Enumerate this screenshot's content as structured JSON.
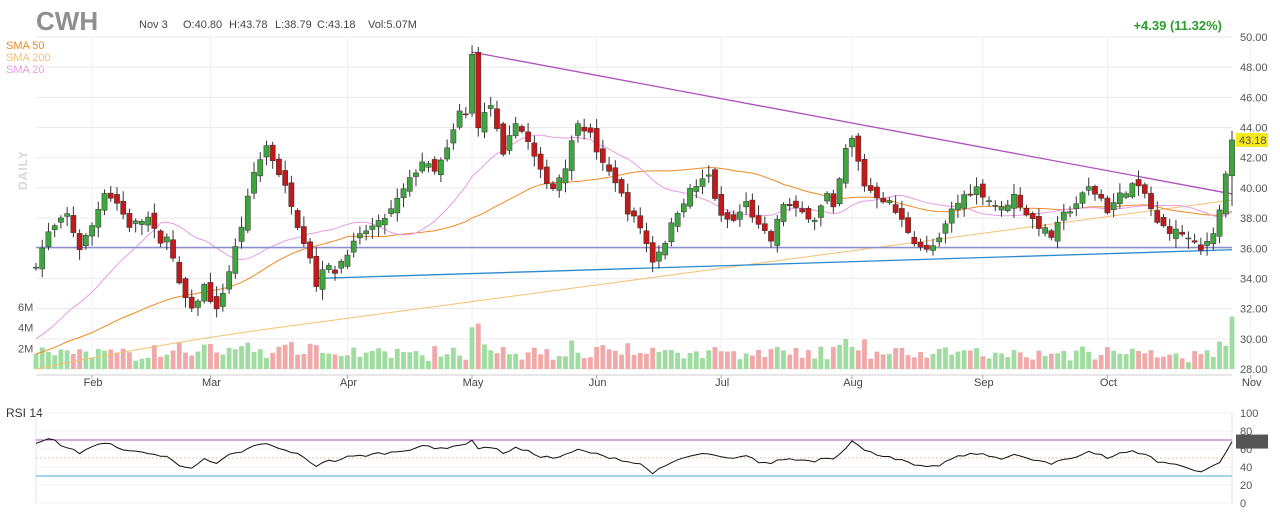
{
  "header": {
    "ticker": "CWH",
    "date": "Nov 3",
    "open": "O:40.80",
    "high": "H:43.78",
    "low": "L:38.79",
    "close": "C:43.18",
    "volume": "Vol:5.07M",
    "change": "+4.39 (11.32%)",
    "timeframe": "DAILY"
  },
  "legend": [
    {
      "label": "SMA 50",
      "color": "#f08a24"
    },
    {
      "label": "SMA 200",
      "color": "#f4c272"
    },
    {
      "label": "SMA 20",
      "color": "#e79be6"
    }
  ],
  "colors": {
    "up": "#3fa63f",
    "down": "#c21a1a",
    "vol_up": "#9fdc9f",
    "vol_down": "#f0a8a8",
    "trend_down": "#b04ec0",
    "trend_up": "#2a8ad0",
    "support": "#8b8fd0",
    "rsi_line": "#111111",
    "rsi_fill": "#a64fc6",
    "rsi_70": "#b04ec0",
    "rsi_30": "#4aa8d8",
    "price_badge": "#f5e91d",
    "rsi_badge": "#555555"
  },
  "chart_data": {
    "type": "candlestick",
    "price_axis": {
      "min": 28,
      "max": 50,
      "ticks": [
        "28.00",
        "30.00",
        "32.00",
        "34.00",
        "36.00",
        "38.00",
        "40.00",
        "42.00",
        "44.00",
        "46.00",
        "48.00",
        "50.00"
      ]
    },
    "volume_axis": {
      "ticks": [
        "2M",
        "4M",
        "6M"
      ],
      "max": 6
    },
    "months": [
      {
        "label": "Feb",
        "index": 9
      },
      {
        "label": "Mar",
        "index": 28
      },
      {
        "label": "Apr",
        "index": 50
      },
      {
        "label": "May",
        "index": 70
      },
      {
        "label": "Jun",
        "index": 90
      },
      {
        "label": "Jul",
        "index": 110
      },
      {
        "label": "Aug",
        "index": 131
      },
      {
        "label": "Sep",
        "index": 152
      },
      {
        "label": "Oct",
        "index": 172
      },
      {
        "label": "Nov",
        "index": 195
      }
    ],
    "last_price": "43.18",
    "anchors": [
      [
        0,
        35
      ],
      [
        2,
        37
      ],
      [
        5,
        38.2
      ],
      [
        7,
        36
      ],
      [
        9,
        37.5
      ],
      [
        11,
        39.8
      ],
      [
        13,
        39
      ],
      [
        15,
        37.5
      ],
      [
        18,
        38
      ],
      [
        20,
        36.2
      ],
      [
        21,
        37
      ],
      [
        23,
        33.5
      ],
      [
        25,
        31.8
      ],
      [
        27,
        33.5
      ],
      [
        29,
        31.8
      ],
      [
        31,
        34.5
      ],
      [
        33,
        37.5
      ],
      [
        35,
        41
      ],
      [
        37,
        42.8
      ],
      [
        39,
        41
      ],
      [
        41,
        39
      ],
      [
        42,
        37.6
      ],
      [
        44,
        35.5
      ],
      [
        45,
        33.5
      ],
      [
        46,
        34.8
      ],
      [
        48,
        34.5
      ],
      [
        50,
        35.8
      ],
      [
        53,
        37.2
      ],
      [
        55,
        37.6
      ],
      [
        57,
        38.5
      ],
      [
        60,
        40.5
      ],
      [
        62,
        41.8
      ],
      [
        64,
        41
      ],
      [
        66,
        42.5
      ],
      [
        68,
        45
      ],
      [
        69,
        44.8
      ],
      [
        70,
        48.8
      ],
      [
        71,
        44.2
      ],
      [
        73,
        45.5
      ],
      [
        75,
        42
      ],
      [
        77,
        44.5
      ],
      [
        79,
        43
      ],
      [
        81,
        41
      ],
      [
        83,
        40
      ],
      [
        85,
        41.5
      ],
      [
        87,
        44.5
      ],
      [
        89,
        43.5
      ],
      [
        91,
        41.5
      ],
      [
        93,
        40.5
      ],
      [
        95,
        38.5
      ],
      [
        97,
        37.4
      ],
      [
        99,
        35.2
      ],
      [
        101,
        36.5
      ],
      [
        103,
        38.5
      ],
      [
        105,
        39.8
      ],
      [
        108,
        40.8
      ],
      [
        110,
        38
      ],
      [
        112,
        37.8
      ],
      [
        114,
        39
      ],
      [
        116,
        37.4
      ],
      [
        118,
        36.5
      ],
      [
        120,
        39
      ],
      [
        122,
        38.5
      ],
      [
        125,
        38
      ],
      [
        127,
        39.5
      ],
      [
        128,
        38.5
      ],
      [
        130,
        42.5
      ],
      [
        131,
        43.2
      ],
      [
        133,
        40.2
      ],
      [
        135,
        39.5
      ],
      [
        137,
        39
      ],
      [
        139,
        37.8
      ],
      [
        141,
        36.5
      ],
      [
        143,
        35.8
      ],
      [
        145,
        36.5
      ],
      [
        147,
        38.5
      ],
      [
        149,
        39.5
      ],
      [
        151,
        40
      ],
      [
        153,
        39.2
      ],
      [
        155,
        38.6
      ],
      [
        157,
        39.5
      ],
      [
        159,
        38.3
      ],
      [
        161,
        37.5
      ],
      [
        163,
        36.8
      ],
      [
        165,
        38.2
      ],
      [
        167,
        39
      ],
      [
        169,
        40
      ],
      [
        171,
        39.3
      ],
      [
        172,
        38.5
      ],
      [
        174,
        39.5
      ],
      [
        176,
        40.2
      ],
      [
        178,
        39.6
      ],
      [
        180,
        37.6
      ],
      [
        182,
        37.2
      ],
      [
        184,
        37
      ],
      [
        186,
        36.2
      ],
      [
        187,
        35.8
      ],
      [
        189,
        37.2
      ],
      [
        190,
        38.5
      ],
      [
        191,
        41
      ]
    ],
    "last_candle": {
      "open": 40.8,
      "high": 43.78,
      "low": 38.79,
      "close": 43.18,
      "volume": 5.07
    },
    "trendline_down": [
      [
        70,
        49.0
      ],
      [
        192,
        39.6
      ]
    ],
    "trendline_up": [
      [
        45,
        34.0
      ],
      [
        192,
        35.9
      ]
    ],
    "support_line": 36.05,
    "rsi": {
      "label": "RSI 14",
      "value": "68.27",
      "axis_ticks": [
        "0",
        "20",
        "40",
        "60",
        "80",
        "100"
      ],
      "levels": [
        70,
        30
      ],
      "anchors": [
        [
          0,
          65
        ],
        [
          2,
          71
        ],
        [
          3,
          69
        ],
        [
          5,
          61
        ],
        [
          7,
          56
        ],
        [
          9,
          63
        ],
        [
          11,
          66
        ],
        [
          13,
          63
        ],
        [
          15,
          57
        ],
        [
          18,
          56
        ],
        [
          20,
          52
        ],
        [
          21,
          51
        ],
        [
          23,
          42
        ],
        [
          25,
          40
        ],
        [
          27,
          48
        ],
        [
          29,
          43
        ],
        [
          31,
          53
        ],
        [
          33,
          57
        ],
        [
          35,
          63
        ],
        [
          37,
          66
        ],
        [
          39,
          60
        ],
        [
          41,
          57
        ],
        [
          42,
          54
        ],
        [
          44,
          46
        ],
        [
          45,
          41
        ],
        [
          46,
          46
        ],
        [
          48,
          47
        ],
        [
          50,
          51
        ],
        [
          53,
          53
        ],
        [
          55,
          55
        ],
        [
          57,
          56
        ],
        [
          60,
          60
        ],
        [
          62,
          64
        ],
        [
          64,
          60
        ],
        [
          66,
          62
        ],
        [
          68,
          65
        ],
        [
          69,
          64
        ],
        [
          70,
          71
        ],
        [
          71,
          61
        ],
        [
          73,
          62
        ],
        [
          75,
          56
        ],
        [
          77,
          61
        ],
        [
          79,
          57
        ],
        [
          81,
          52
        ],
        [
          83,
          50
        ],
        [
          85,
          53
        ],
        [
          87,
          59
        ],
        [
          89,
          56
        ],
        [
          91,
          52
        ],
        [
          93,
          50
        ],
        [
          95,
          46
        ],
        [
          97,
          43
        ],
        [
          99,
          34
        ],
        [
          101,
          40
        ],
        [
          103,
          48
        ],
        [
          105,
          52
        ],
        [
          108,
          55
        ],
        [
          110,
          50
        ],
        [
          112,
          49
        ],
        [
          114,
          52
        ],
        [
          116,
          46
        ],
        [
          118,
          44
        ],
        [
          120,
          49
        ],
        [
          122,
          48
        ],
        [
          125,
          47
        ],
        [
          127,
          51
        ],
        [
          128,
          49
        ],
        [
          130,
          62
        ],
        [
          131,
          70
        ],
        [
          133,
          58
        ],
        [
          135,
          54
        ],
        [
          137,
          52
        ],
        [
          139,
          47
        ],
        [
          141,
          42
        ],
        [
          143,
          39
        ],
        [
          145,
          42
        ],
        [
          147,
          49
        ],
        [
          149,
          53
        ],
        [
          151,
          55
        ],
        [
          153,
          52
        ],
        [
          155,
          50
        ],
        [
          157,
          54
        ],
        [
          159,
          49
        ],
        [
          161,
          47
        ],
        [
          163,
          43
        ],
        [
          165,
          48
        ],
        [
          167,
          51
        ],
        [
          169,
          58
        ],
        [
          171,
          54
        ],
        [
          172,
          50
        ],
        [
          174,
          55
        ],
        [
          176,
          57
        ],
        [
          178,
          55
        ],
        [
          180,
          46
        ],
        [
          182,
          44
        ],
        [
          184,
          41
        ],
        [
          186,
          37
        ],
        [
          187,
          35
        ],
        [
          189,
          41
        ],
        [
          190,
          46
        ],
        [
          191,
          55
        ],
        [
          192,
          68.27
        ]
      ]
    }
  }
}
